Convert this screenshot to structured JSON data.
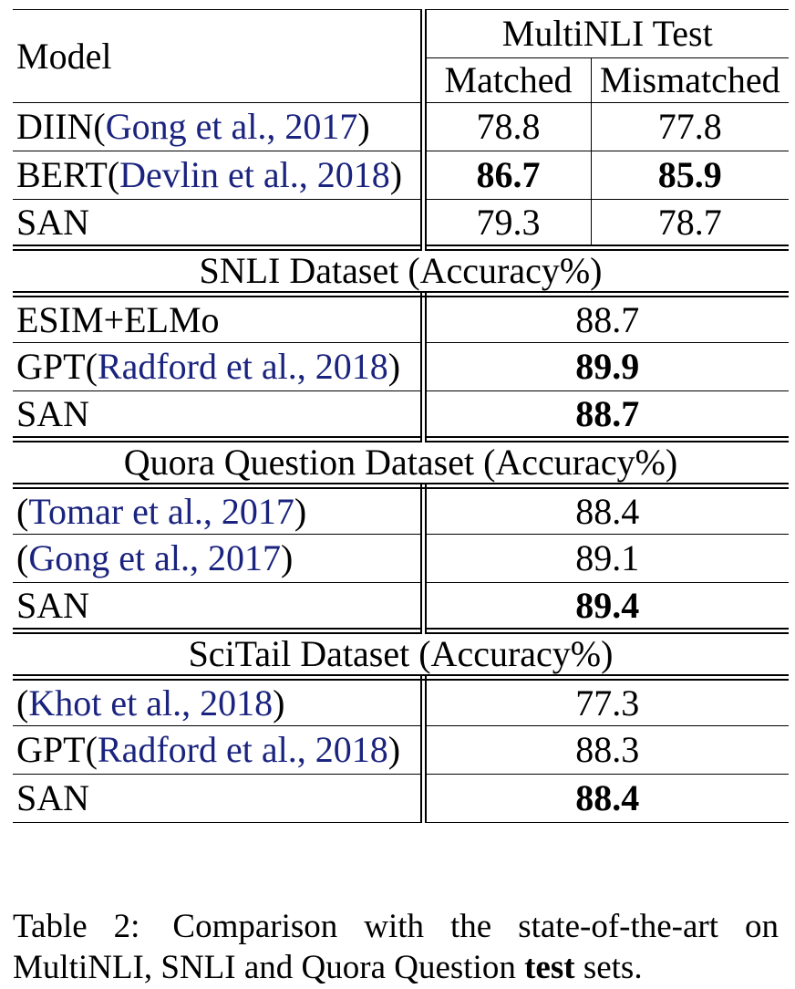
{
  "header": {
    "model": "Model",
    "group": "MultiNLI Test",
    "matched": "Matched",
    "mismatched": "Mismatched"
  },
  "multinli": [
    {
      "name": "DIIN",
      "cite": "Gong et al., 2017",
      "matched": "78.8",
      "mismatched": "77.8",
      "bold": false
    },
    {
      "name": "BERT",
      "cite": "Devlin et al., 2018",
      "matched": "86.7",
      "mismatched": "85.9",
      "bold": true
    },
    {
      "name": "SAN",
      "cite": "",
      "matched": "79.3",
      "mismatched": "78.7",
      "bold": false
    }
  ],
  "snli": {
    "title": "SNLI Dataset (Accuracy%)",
    "rows": [
      {
        "name": "ESIM+ELMo",
        "cite": "",
        "value": "88.7",
        "bold": false
      },
      {
        "name": "GPT",
        "cite": "Radford et al., 2018",
        "value": "89.9",
        "bold": true
      },
      {
        "name": "SAN",
        "cite": "",
        "value": "88.7",
        "bold": true
      }
    ]
  },
  "quora": {
    "title": "Quora Question Dataset (Accuracy%)",
    "rows": [
      {
        "name": "",
        "cite": "Tomar et al., 2017",
        "value": "88.4",
        "bold": false
      },
      {
        "name": "",
        "cite": "Gong et al., 2017",
        "value": "89.1",
        "bold": false
      },
      {
        "name": "SAN",
        "cite": "",
        "value": "89.4",
        "bold": true
      }
    ]
  },
  "scitail": {
    "title": "SciTail Dataset (Accuracy%)",
    "rows": [
      {
        "name": "",
        "cite": "Khot et al., 2018",
        "value": "77.3",
        "bold": false
      },
      {
        "name": "GPT",
        "cite": "Radford et al., 2018",
        "value": "88.3",
        "bold": false
      },
      {
        "name": "SAN",
        "cite": "",
        "value": "88.4",
        "bold": true
      }
    ]
  },
  "caption": {
    "label": "Table 2:",
    "text_before": "Comparison with the state-of-the-art on MultiNLI, SNLI and Quora Question",
    "bold_word": "test",
    "text_after": "sets."
  }
}
